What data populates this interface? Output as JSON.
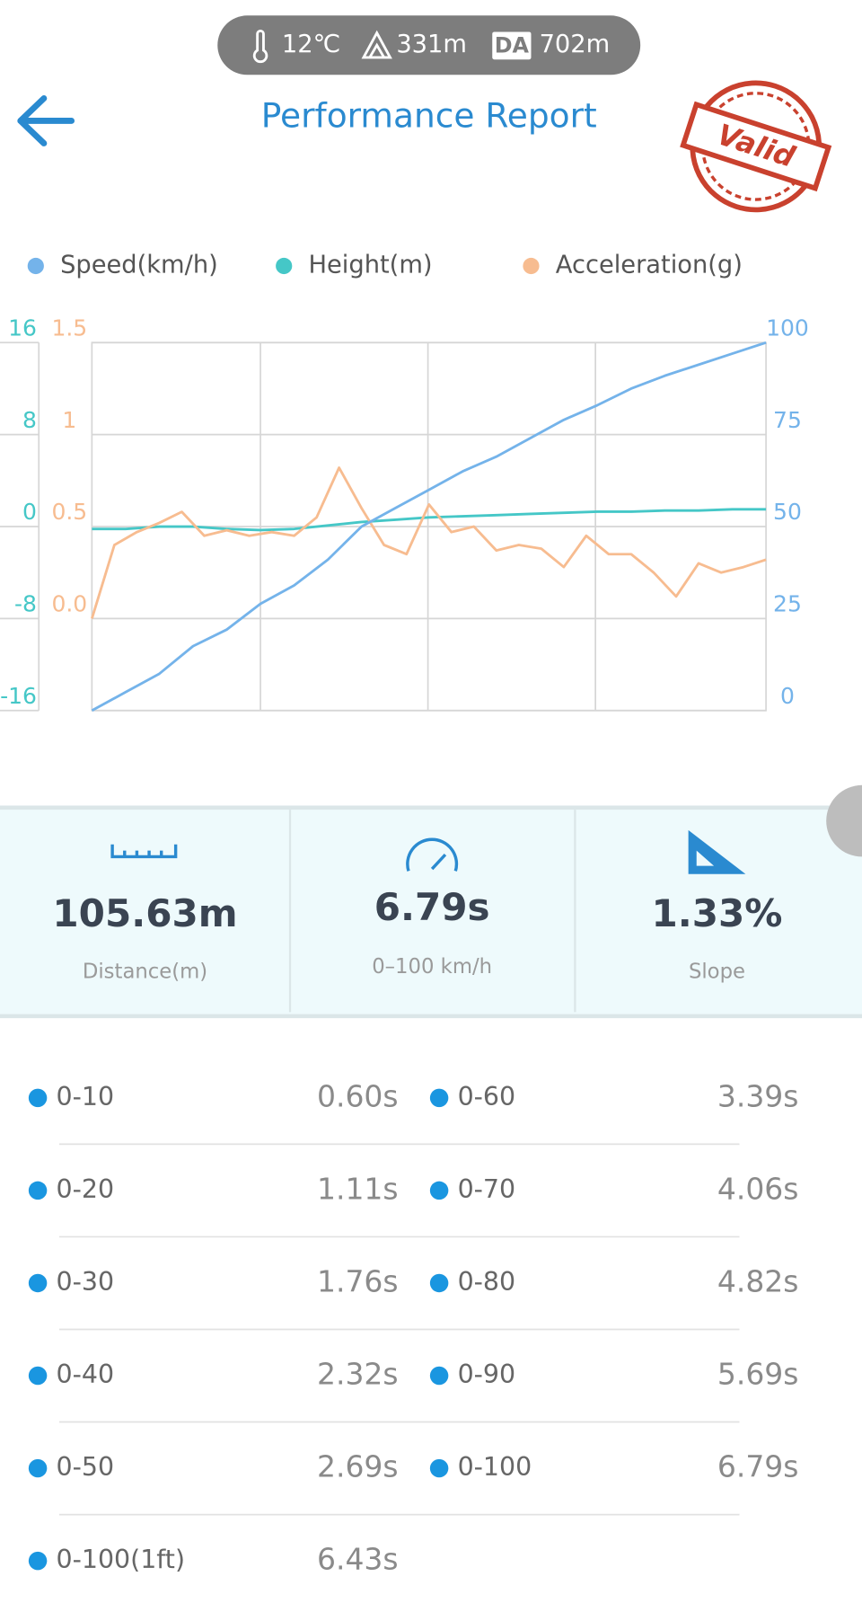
{
  "status": {
    "temperature": "12℃",
    "altitude": "331m",
    "da_label": "DA",
    "density_altitude": "702m"
  },
  "header": {
    "title": "Performance Report",
    "stamp": "Valid"
  },
  "chart_data": {
    "type": "line",
    "series": [
      {
        "name": "Speed(km/h)",
        "color": "#74b3ea",
        "axis": "y2",
        "values": [
          0,
          5,
          10,
          17.5,
          22,
          29,
          34,
          41,
          50,
          55,
          60,
          65,
          69,
          74,
          79,
          83,
          87.5,
          91,
          94,
          97,
          100
        ]
      },
      {
        "name": "Height(m)",
        "color": "#45c7c7",
        "axis": "y",
        "values": [
          -0.2,
          -0.2,
          0,
          0,
          -0.2,
          -0.3,
          -0.2,
          0.1,
          0.4,
          0.6,
          0.8,
          0.9,
          1.0,
          1.1,
          1.2,
          1.3,
          1.3,
          1.4,
          1.4,
          1.5,
          1.5
        ]
      },
      {
        "name": "Acceleration(g)",
        "color": "#f7bc90",
        "axis": "y3",
        "values": [
          0.0,
          0.4,
          0.47,
          0.52,
          0.58,
          0.45,
          0.48,
          0.45,
          0.47,
          0.45,
          0.55,
          0.82,
          0.6,
          0.4,
          0.35,
          0.62,
          0.47,
          0.5,
          0.37,
          0.4,
          0.38,
          0.28,
          0.45,
          0.35,
          0.35,
          0.25,
          0.12,
          0.3,
          0.25,
          0.28,
          0.32
        ]
      }
    ],
    "ylim": [
      -16,
      16
    ],
    "yticks": [
      -16,
      -8,
      0,
      8,
      16
    ],
    "y2lim": [
      0,
      100
    ],
    "y2ticks": [
      0,
      25,
      50,
      75,
      100
    ],
    "y3lim": [
      -0.5,
      1.5
    ],
    "y3ticks": [
      {
        "value": 0,
        "label": "0.0"
      },
      0.5,
      1,
      1.5
    ],
    "grid": true
  },
  "stats": [
    {
      "value": "105.63m",
      "label": "Distance(m)"
    },
    {
      "value": "6.79s",
      "label": "0–100 km/h"
    },
    {
      "value": "1.33%",
      "label": "Slope"
    }
  ],
  "splits": {
    "left": [
      {
        "name": "0-10",
        "time": "0.60s"
      },
      {
        "name": "0-20",
        "time": "1.11s"
      },
      {
        "name": "0-30",
        "time": "1.76s"
      },
      {
        "name": "0-40",
        "time": "2.32s"
      },
      {
        "name": "0-50",
        "time": "2.69s"
      },
      {
        "name": "0-100(1ft)",
        "time": "6.43s"
      }
    ],
    "right": [
      {
        "name": "0-60",
        "time": "3.39s"
      },
      {
        "name": "0-70",
        "time": "4.06s"
      },
      {
        "name": "0-80",
        "time": "4.82s"
      },
      {
        "name": "0-90",
        "time": "5.69s"
      },
      {
        "name": "0-100",
        "time": "6.79s"
      }
    ]
  }
}
